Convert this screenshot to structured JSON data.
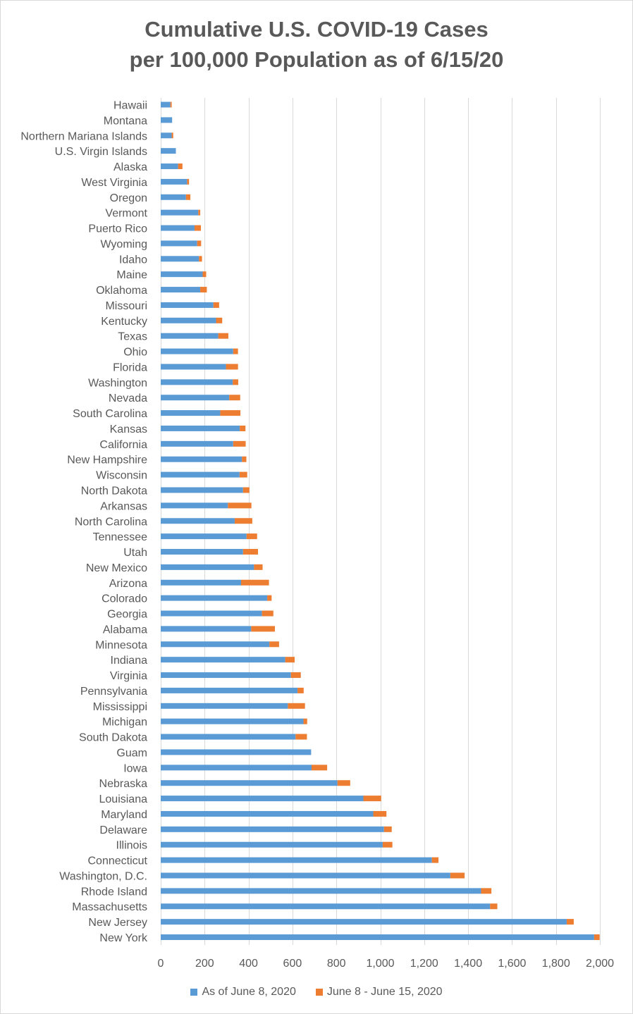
{
  "chart_data": {
    "type": "bar",
    "orientation": "horizontal",
    "stacked": true,
    "title": "Cumulative U.S. COVID-19 Cases per 100,000 Population as of 6/15/20",
    "title_lines": [
      "Cumulative U.S. COVID-19 Cases",
      "per 100,000 Population as of 6/15/20"
    ],
    "xlim": [
      0,
      2000
    ],
    "xticks": [
      "0",
      "200",
      "400",
      "600",
      "800",
      "1,000",
      "1,200",
      "1,400",
      "1,600",
      "1,800",
      "2,000"
    ],
    "xtick_values": [
      0,
      200,
      400,
      600,
      800,
      1000,
      1200,
      1400,
      1600,
      1800,
      2000
    ],
    "grid": "vertical",
    "legend_position": "bottom",
    "categories": [
      "Hawaii",
      "Montana",
      "Northern Mariana Islands",
      "U.S. Virgin Islands",
      "Alaska",
      "West Virginia",
      "Oregon",
      "Vermont",
      "Puerto Rico",
      "Wyoming",
      "Idaho",
      "Maine",
      "Oklahoma",
      "Missouri",
      "Kentucky",
      "Texas",
      "Ohio",
      "Florida",
      "Washington",
      "Nevada",
      "South Carolina",
      "Kansas",
      "California",
      "New Hampshire",
      "Wisconsin",
      "North Dakota",
      "Arkansas",
      "North Carolina",
      "Tennessee",
      "Utah",
      "New Mexico",
      "Arizona",
      "Colorado",
      "Georgia",
      "Alabama",
      "Minnesota",
      "Indiana",
      "Virginia",
      "Pennsylvania",
      "Mississippi",
      "Michigan",
      "South Dakota",
      "Guam",
      "Iowa",
      "Nebraska",
      "Louisiana",
      "Maryland",
      "Delaware",
      "Illinois",
      "Connecticut",
      "Washington, D.C.",
      "Rhode Island",
      "Massachusetts",
      "New Jersey",
      "New York"
    ],
    "series": [
      {
        "name": "As of June 8, 2020",
        "color": "#5b9bd5",
        "values": [
          44,
          52,
          50,
          69,
          79,
          120,
          115,
          171,
          154,
          166,
          174,
          191,
          180,
          240,
          252,
          262,
          330,
          297,
          328,
          312,
          271,
          360,
          330,
          370,
          359,
          375,
          306,
          337,
          391,
          375,
          425,
          366,
          485,
          461,
          412,
          495,
          567,
          593,
          623,
          579,
          650,
          614,
          685,
          687,
          805,
          923,
          968,
          1017,
          1011,
          1235,
          1319,
          1459,
          1500,
          1849,
          1974
        ]
      },
      {
        "name": "June 8 - June 15, 2020",
        "color": "#ed7d31",
        "values": [
          6,
          0,
          7,
          0,
          20,
          9,
          20,
          9,
          29,
          18,
          14,
          16,
          30,
          26,
          28,
          46,
          22,
          55,
          25,
          50,
          92,
          26,
          57,
          20,
          35,
          29,
          107,
          80,
          48,
          68,
          39,
          127,
          20,
          52,
          108,
          44,
          43,
          45,
          28,
          78,
          17,
          52,
          0,
          71,
          58,
          81,
          60,
          35,
          44,
          30,
          65,
          47,
          33,
          32,
          25
        ]
      }
    ]
  }
}
